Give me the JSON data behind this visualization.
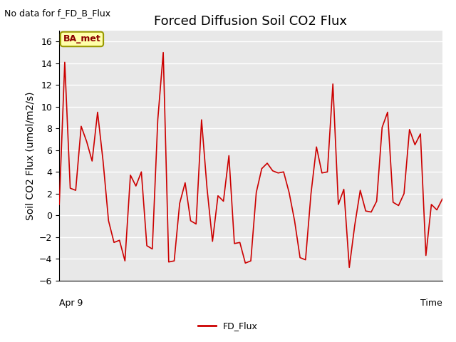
{
  "title": "Forced Diffusion Soil CO2 Flux",
  "top_left_text": "No data for f_FD_B_Flux",
  "ylabel": "Soil CO2 Flux (umol/m2/s)",
  "xlabel": "Time",
  "xlim_label": "Apr 9",
  "ylim": [
    -6,
    17
  ],
  "yticks": [
    -6,
    -4,
    -2,
    0,
    2,
    4,
    6,
    8,
    10,
    12,
    14,
    16
  ],
  "legend_label": "FD_Flux",
  "legend_color": "#cc0000",
  "box_label": "BA_met",
  "box_facecolor": "#ffffaa",
  "box_edgecolor": "#999900",
  "line_color": "#cc0000",
  "background_color": "#e8e8e8",
  "grid_color": "#ffffff",
  "title_fontsize": 13,
  "axis_label_fontsize": 10,
  "y_values": [
    1.0,
    14.1,
    2.5,
    2.3,
    8.2,
    6.8,
    5.0,
    9.5,
    5.0,
    -0.5,
    -2.5,
    -2.3,
    -4.2,
    3.7,
    2.7,
    4.0,
    -2.8,
    -3.1,
    8.8,
    15.0,
    -4.3,
    -4.2,
    1.1,
    3.0,
    -0.5,
    -0.8,
    8.8,
    2.5,
    -2.4,
    1.8,
    1.3,
    5.5,
    -2.6,
    -2.5,
    -4.4,
    -4.2,
    2.1,
    4.3,
    4.8,
    4.1,
    3.9,
    4.0,
    2.1,
    -0.5,
    -3.9,
    -4.1,
    2.0,
    6.3,
    3.9,
    4.0,
    12.1,
    1.0,
    2.4,
    -4.8,
    -0.9,
    2.3,
    0.4,
    0.3,
    1.3,
    8.1,
    9.5,
    1.2,
    0.9,
    2.0,
    7.9,
    6.5,
    7.5,
    -3.7,
    1.0,
    0.5,
    1.5
  ]
}
